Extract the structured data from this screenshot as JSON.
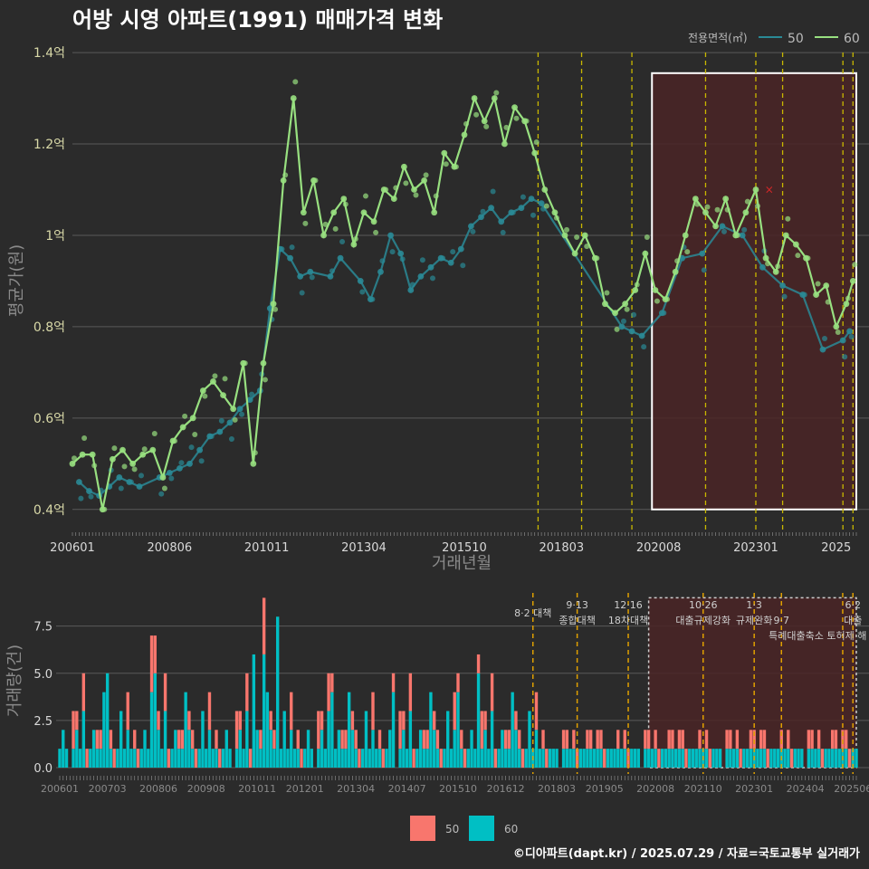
{
  "title": "어방 시영 아파트(1991) 매매가격 변화",
  "footer": "©디아파트(dapt.kr) / 2025.07.29 / 자료=국토교통부 실거래가",
  "colors": {
    "background": "#2b2b2b",
    "series_50_price": "#2a8a96",
    "series_60_price": "#98e080",
    "bar_50": "#f8766d",
    "bar_60": "#00bfc4",
    "policy_line": "#c9b800",
    "highlight_fill": "#4a2426",
    "highlight_border": "#ffffff",
    "grid": "#5a5a5a"
  },
  "chart_data": [
    {
      "type": "line",
      "title": "어방 시영 아파트(1991) 매매가격 변화",
      "xlabel": "거래년월",
      "ylabel": "평균가(원)",
      "x_ticks": [
        "200601",
        "200806",
        "201011",
        "201304",
        "201510",
        "201803",
        "202008",
        "202301",
        "2025"
      ],
      "y_ticks": [
        "0.4억",
        "0.6억",
        "0.8억",
        "1억",
        "1.2억",
        "1.4억"
      ],
      "y_tick_values": [
        0.4,
        0.6,
        0.8,
        1.0,
        1.2,
        1.4
      ],
      "ylim": [
        0.35,
        1.42
      ],
      "legend_title": "전용면적(㎡)",
      "legend_placement": "top-right",
      "series": [
        {
          "name": "50",
          "color": "#2a8a96",
          "points": [
            [
              "2006-03",
              0.46
            ],
            [
              "2006-06",
              0.44
            ],
            [
              "2006-09",
              0.43
            ],
            [
              "2006-12",
              0.45
            ],
            [
              "2007-03",
              0.47
            ],
            [
              "2007-06",
              0.46
            ],
            [
              "2007-09",
              0.45
            ],
            [
              "2008-03",
              0.47
            ],
            [
              "2008-06",
              0.48
            ],
            [
              "2008-09",
              0.49
            ],
            [
              "2008-12",
              0.5
            ],
            [
              "2009-03",
              0.53
            ],
            [
              "2009-06",
              0.56
            ],
            [
              "2009-09",
              0.57
            ],
            [
              "2009-12",
              0.59
            ],
            [
              "2010-03",
              0.62
            ],
            [
              "2010-06",
              0.64
            ],
            [
              "2010-09",
              0.66
            ],
            [
              "2010-12",
              0.84
            ],
            [
              "2011-03",
              0.97
            ],
            [
              "2011-06",
              0.95
            ],
            [
              "2011-09",
              0.91
            ],
            [
              "2011-12",
              0.92
            ],
            [
              "2012-06",
              0.91
            ],
            [
              "2012-09",
              0.95
            ],
            [
              "2013-03",
              0.9
            ],
            [
              "2013-06",
              0.86
            ],
            [
              "2013-09",
              0.92
            ],
            [
              "2013-12",
              1.0
            ],
            [
              "2014-03",
              0.96
            ],
            [
              "2014-06",
              0.88
            ],
            [
              "2014-09",
              0.91
            ],
            [
              "2014-12",
              0.93
            ],
            [
              "2015-03",
              0.95
            ],
            [
              "2015-06",
              0.94
            ],
            [
              "2015-09",
              0.97
            ],
            [
              "2015-12",
              1.02
            ],
            [
              "2016-03",
              1.04
            ],
            [
              "2016-06",
              1.06
            ],
            [
              "2016-09",
              1.03
            ],
            [
              "2016-12",
              1.05
            ],
            [
              "2017-03",
              1.06
            ],
            [
              "2017-06",
              1.08
            ],
            [
              "2017-09",
              1.07
            ],
            [
              "2019-09",
              0.8
            ],
            [
              "2019-12",
              0.79
            ],
            [
              "2020-03",
              0.78
            ],
            [
              "2020-09",
              0.83
            ],
            [
              "2021-03",
              0.95
            ],
            [
              "2021-09",
              0.96
            ],
            [
              "2022-03",
              1.02
            ],
            [
              "2022-09",
              1.0
            ],
            [
              "2023-03",
              0.93
            ],
            [
              "2023-09",
              0.89
            ],
            [
              "2024-03",
              0.87
            ],
            [
              "2024-09",
              0.75
            ],
            [
              "2025-03",
              0.77
            ],
            [
              "2025-05",
              0.79
            ]
          ]
        },
        {
          "name": "60",
          "color": "#98e080",
          "points": [
            [
              "2006-01",
              0.5
            ],
            [
              "2006-04",
              0.52
            ],
            [
              "2006-07",
              0.52
            ],
            [
              "2006-10",
              0.4
            ],
            [
              "2007-01",
              0.51
            ],
            [
              "2007-04",
              0.53
            ],
            [
              "2007-07",
              0.5
            ],
            [
              "2007-10",
              0.52
            ],
            [
              "2008-01",
              0.53
            ],
            [
              "2008-04",
              0.47
            ],
            [
              "2008-07",
              0.55
            ],
            [
              "2008-10",
              0.58
            ],
            [
              "2009-01",
              0.6
            ],
            [
              "2009-04",
              0.66
            ],
            [
              "2009-07",
              0.68
            ],
            [
              "2009-10",
              0.65
            ],
            [
              "2010-01",
              0.62
            ],
            [
              "2010-04",
              0.72
            ],
            [
              "2010-07",
              0.5
            ],
            [
              "2010-10",
              0.72
            ],
            [
              "2011-01",
              0.85
            ],
            [
              "2011-04",
              1.12
            ],
            [
              "2011-07",
              1.3
            ],
            [
              "2011-10",
              1.05
            ],
            [
              "2012-01",
              1.12
            ],
            [
              "2012-04",
              1.0
            ],
            [
              "2012-07",
              1.05
            ],
            [
              "2012-10",
              1.08
            ],
            [
              "2013-01",
              0.98
            ],
            [
              "2013-04",
              1.05
            ],
            [
              "2013-07",
              1.03
            ],
            [
              "2013-10",
              1.1
            ],
            [
              "2014-01",
              1.08
            ],
            [
              "2014-04",
              1.15
            ],
            [
              "2014-07",
              1.1
            ],
            [
              "2014-10",
              1.12
            ],
            [
              "2015-01",
              1.05
            ],
            [
              "2015-04",
              1.18
            ],
            [
              "2015-07",
              1.15
            ],
            [
              "2015-10",
              1.22
            ],
            [
              "2016-01",
              1.3
            ],
            [
              "2016-04",
              1.25
            ],
            [
              "2016-07",
              1.3
            ],
            [
              "2016-10",
              1.2
            ],
            [
              "2017-01",
              1.28
            ],
            [
              "2017-04",
              1.25
            ],
            [
              "2017-07",
              1.18
            ],
            [
              "2017-10",
              1.1
            ],
            [
              "2018-01",
              1.05
            ],
            [
              "2018-04",
              1.0
            ],
            [
              "2018-07",
              0.96
            ],
            [
              "2018-10",
              1.0
            ],
            [
              "2019-01",
              0.95
            ],
            [
              "2019-04",
              0.85
            ],
            [
              "2019-07",
              0.83
            ],
            [
              "2019-10",
              0.85
            ],
            [
              "2020-01",
              0.88
            ],
            [
              "2020-04",
              0.96
            ],
            [
              "2020-07",
              0.88
            ],
            [
              "2020-10",
              0.86
            ],
            [
              "2021-01",
              0.92
            ],
            [
              "2021-04",
              1.0
            ],
            [
              "2021-07",
              1.08
            ],
            [
              "2021-10",
              1.05
            ],
            [
              "2022-01",
              1.02
            ],
            [
              "2022-04",
              1.08
            ],
            [
              "2022-07",
              1.0
            ],
            [
              "2022-10",
              1.05
            ],
            [
              "2023-01",
              1.1
            ],
            [
              "2023-04",
              0.95
            ],
            [
              "2023-07",
              0.92
            ],
            [
              "2023-10",
              1.0
            ],
            [
              "2024-01",
              0.98
            ],
            [
              "2024-04",
              0.95
            ],
            [
              "2024-07",
              0.87
            ],
            [
              "2024-10",
              0.89
            ],
            [
              "2025-01",
              0.8
            ],
            [
              "2025-04",
              0.85
            ],
            [
              "2025-06",
              0.9
            ]
          ]
        }
      ],
      "vlines": [
        "2017-08",
        "2018-09",
        "2019-12",
        "2021-10",
        "2023-01",
        "2023-09",
        "2025-03",
        "2025-06"
      ],
      "highlight_range": [
        "2020-06",
        "2025-07"
      ],
      "marker_x": {
        "x": "2023-05",
        "y": 1.1
      }
    },
    {
      "type": "bar",
      "ylabel": "거래량(건)",
      "x_ticks": [
        "200601",
        "200703",
        "200806",
        "200908",
        "201011",
        "201201",
        "201304",
        "201407",
        "201510",
        "201612",
        "201803",
        "201905",
        "202008",
        "202110",
        "202301",
        "202404",
        "202506"
      ],
      "y_ticks": [
        "0.0",
        "2.5",
        "5.0",
        "7.5"
      ],
      "y_tick_values": [
        0,
        2.5,
        5,
        7.5
      ],
      "ylim": [
        0,
        9.5
      ],
      "legend": [
        "50",
        "60"
      ],
      "legend_placement": "bottom",
      "bar_60_cycle": [
        1,
        2,
        1,
        0,
        1,
        2,
        1,
        3,
        0,
        1,
        2,
        1,
        1,
        4,
        2,
        1,
        0,
        1,
        3,
        1,
        2,
        1,
        1,
        0
      ],
      "bar_50_cycle": [
        0,
        1,
        0,
        1,
        2,
        0,
        0,
        1,
        1,
        0,
        0,
        2,
        1,
        0,
        1,
        0,
        1,
        0,
        0,
        1,
        2,
        0,
        1,
        0
      ],
      "bar_peaks": [
        {
          "x": "2008-04",
          "b50": 3,
          "b60": 4
        },
        {
          "x": "2008-05",
          "b50": 2,
          "b60": 5
        },
        {
          "x": "2007-03",
          "b50": 0,
          "b60": 5
        },
        {
          "x": "2010-10",
          "b50": 0,
          "b60": 6
        },
        {
          "x": "2011-01",
          "b50": 3,
          "b60": 6
        },
        {
          "x": "2011-05",
          "b50": 0,
          "b60": 8
        },
        {
          "x": "2015-10",
          "b50": 1,
          "b60": 4
        },
        {
          "x": "2016-04",
          "b50": 1,
          "b60": 5
        },
        {
          "x": "2014-03",
          "b50": 1,
          "b60": 4
        },
        {
          "x": "2012-09",
          "b50": 1,
          "b60": 4
        }
      ],
      "annotations": [
        {
          "x": "2017-08",
          "date": "8·2",
          "label": "대책",
          "row": 1
        },
        {
          "x": "2018-09",
          "date": "9·13",
          "label": "종합대책",
          "row": 0
        },
        {
          "x": "2019-12",
          "date": "12·16",
          "label": "18차대책",
          "row": 0
        },
        {
          "x": "2021-10",
          "date": "10·26",
          "label": "대출규제강화",
          "row": 0
        },
        {
          "x": "2023-01",
          "date": "1·3",
          "label": "규제완화",
          "row": 0
        },
        {
          "x": "2023-09",
          "date": "9·7",
          "label": "특례대출축소 토허제 해",
          "row": 2
        },
        {
          "x": "2025-06",
          "date": "6·2",
          "label": "대출",
          "row": 0
        }
      ],
      "highlight_range": [
        "2020-06",
        "2025-07"
      ]
    }
  ]
}
